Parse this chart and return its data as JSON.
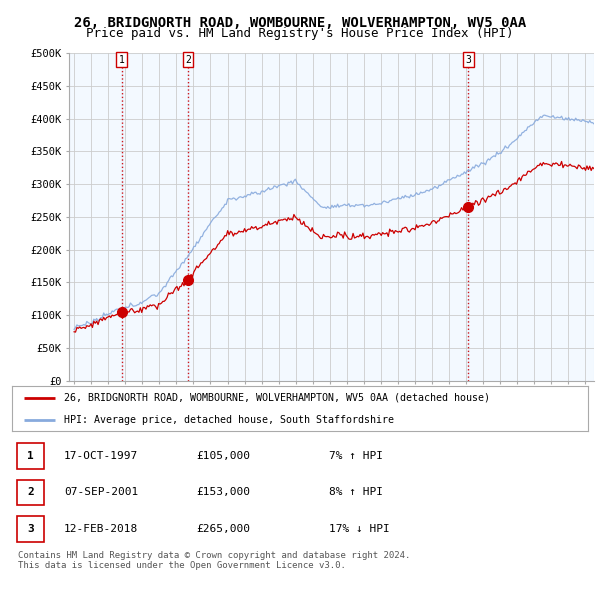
{
  "title": "26, BRIDGNORTH ROAD, WOMBOURNE, WOLVERHAMPTON, WV5 0AA",
  "subtitle": "Price paid vs. HM Land Registry's House Price Index (HPI)",
  "ylabel_ticks": [
    "£0",
    "£50K",
    "£100K",
    "£150K",
    "£200K",
    "£250K",
    "£300K",
    "£350K",
    "£400K",
    "£450K",
    "£500K"
  ],
  "ytick_vals": [
    0,
    50000,
    100000,
    150000,
    200000,
    250000,
    300000,
    350000,
    400000,
    450000,
    500000
  ],
  "xlim": [
    1994.7,
    2025.5
  ],
  "ylim": [
    0,
    500000
  ],
  "sale_dates": [
    1997.79,
    2001.68,
    2018.12
  ],
  "sale_prices": [
    105000,
    153000,
    265000
  ],
  "sale_labels": [
    "1",
    "2",
    "3"
  ],
  "legend_house": "26, BRIDGNORTH ROAD, WOMBOURNE, WOLVERHAMPTON, WV5 0AA (detached house)",
  "legend_hpi": "HPI: Average price, detached house, South Staffordshire",
  "table_rows": [
    [
      "1",
      "17-OCT-1997",
      "£105,000",
      "7% ↑ HPI"
    ],
    [
      "2",
      "07-SEP-2001",
      "£153,000",
      "8% ↑ HPI"
    ],
    [
      "3",
      "12-FEB-2018",
      "£265,000",
      "17% ↓ HPI"
    ]
  ],
  "footer": "Contains HM Land Registry data © Crown copyright and database right 2024.\nThis data is licensed under the Open Government Licence v3.0.",
  "line_color_house": "#cc0000",
  "line_color_hpi": "#88aadd",
  "marker_color": "#cc0000",
  "vline_color": "#cc0000",
  "shade_color": "#ddeeff",
  "background_color": "#ffffff",
  "grid_color": "#cccccc",
  "title_fontsize": 10,
  "subtitle_fontsize": 9,
  "tick_fontsize": 7.5
}
